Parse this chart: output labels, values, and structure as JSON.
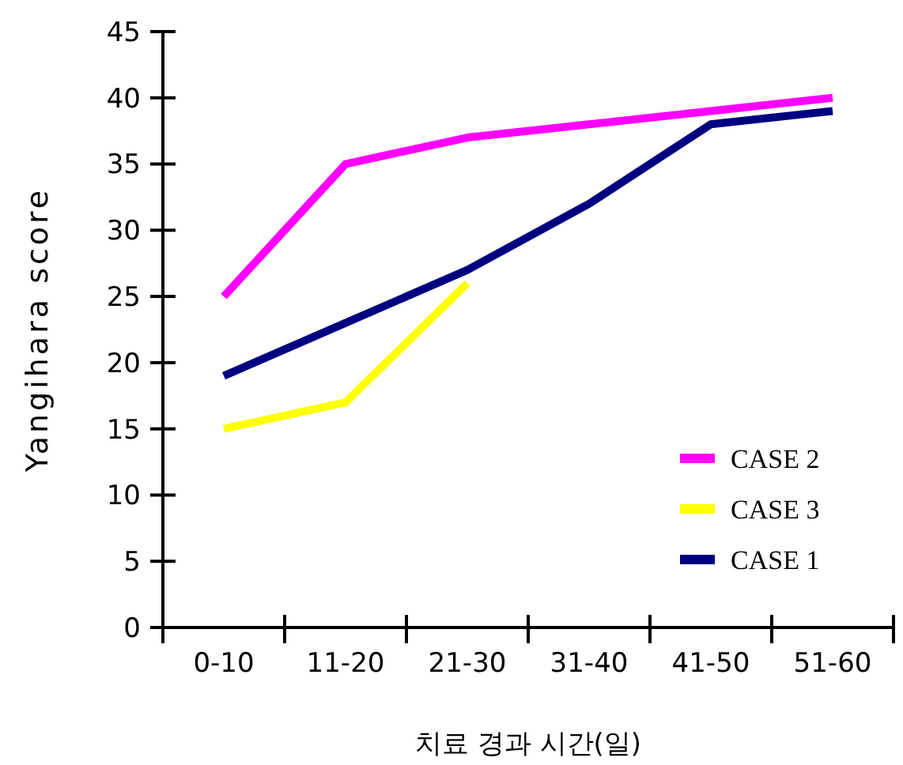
{
  "chart_data": {
    "type": "line",
    "xlabel": "치료 경과 시간(일)",
    "ylabel": "Yangihara score",
    "categories": [
      "0-10",
      "11-20",
      "21-30",
      "31-40",
      "41-50",
      "51-60"
    ],
    "series": [
      {
        "name": "CASE 2",
        "color": "#ff00ff",
        "values": [
          25,
          35,
          37,
          38,
          39,
          40
        ]
      },
      {
        "name": "CASE 3",
        "color": "#ffff00",
        "values": [
          15,
          17,
          26,
          null,
          null,
          null
        ]
      },
      {
        "name": "CASE 1",
        "color": "#000080",
        "values": [
          19,
          23,
          27,
          32,
          38,
          39
        ]
      }
    ],
    "ylim": [
      0,
      45
    ],
    "yticks": [
      0,
      5,
      10,
      15,
      20,
      25,
      30,
      35,
      40,
      45
    ],
    "grid": false,
    "legend": "bottom right",
    "marker": "none",
    "line_style": "solid"
  }
}
